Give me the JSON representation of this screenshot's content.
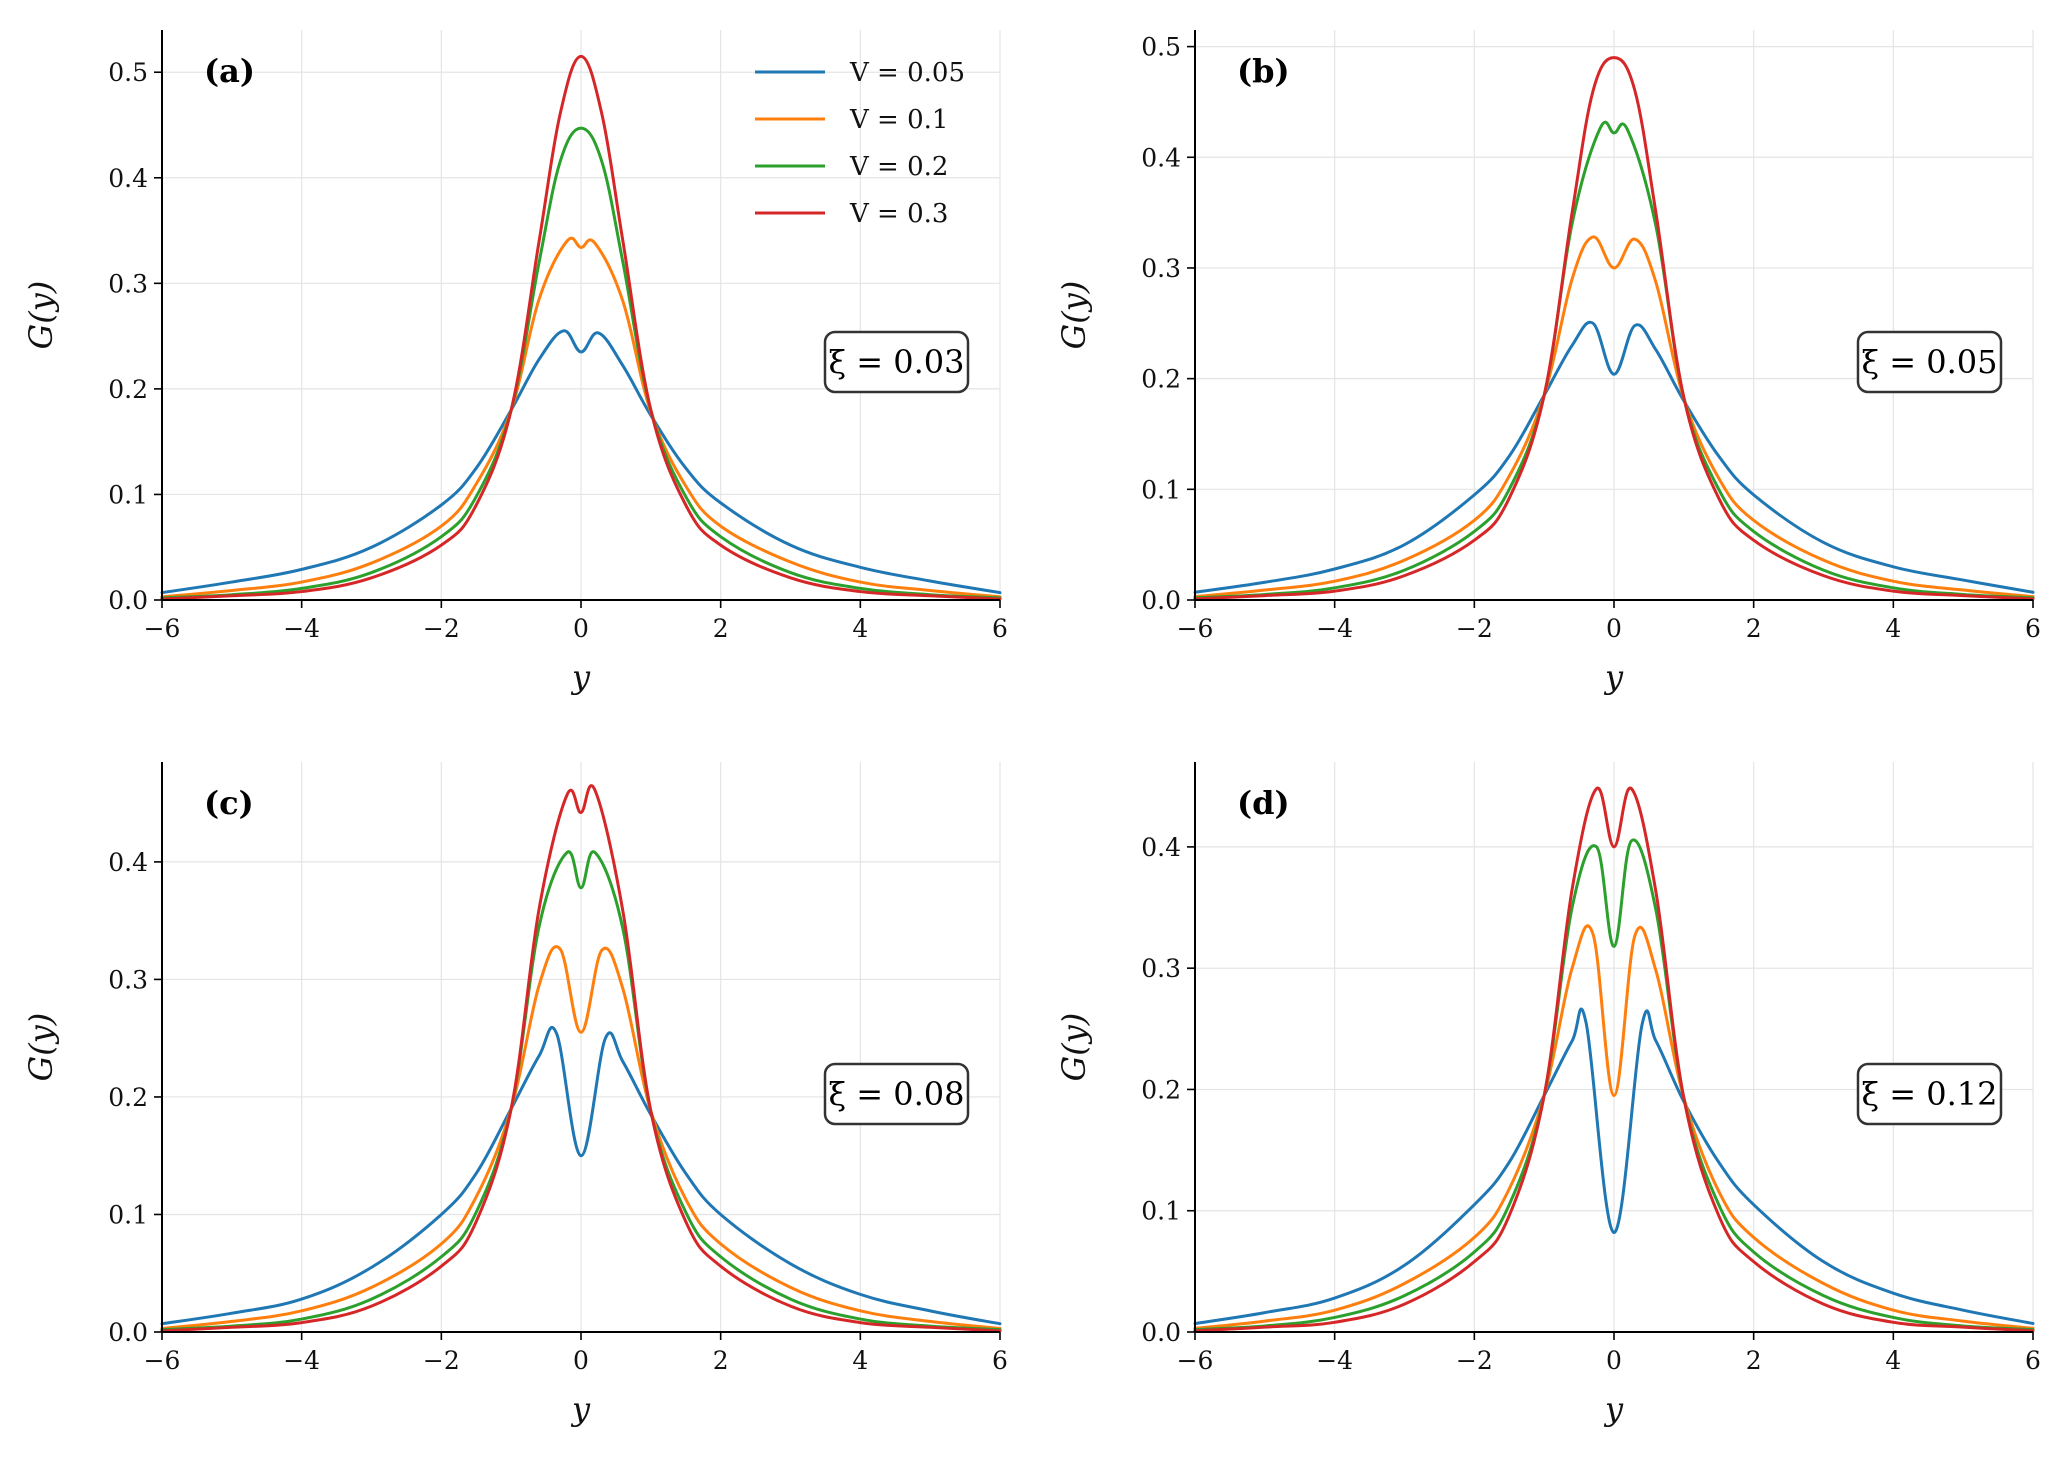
{
  "chart_data": [
    {
      "type": "line",
      "panel_label": "(a)",
      "annotation": "ξ = 0.03",
      "xlabel": "y",
      "ylabel": "G(y)",
      "xlim": [
        -6,
        6
      ],
      "ylim": [
        0,
        0.54
      ],
      "xticks": [
        -6,
        -4,
        -2,
        0,
        2,
        4,
        6
      ],
      "yticks": [
        0.0,
        0.1,
        0.2,
        0.3,
        0.4,
        0.5
      ],
      "grid": true,
      "legend": "top-right",
      "series": [
        {
          "name": "V = 0.05",
          "color": "#1f77b4",
          "x": [
            -6,
            -5,
            -4,
            -3,
            -2,
            -1.5,
            -1,
            -0.6,
            -0.25,
            0,
            0.25,
            0.6,
            1,
            1.5,
            2,
            3,
            4,
            5,
            6
          ],
          "y": [
            0.007,
            0.017,
            0.029,
            0.05,
            0.09,
            0.125,
            0.18,
            0.228,
            0.255,
            0.235,
            0.253,
            0.222,
            0.175,
            0.125,
            0.092,
            0.052,
            0.031,
            0.018,
            0.007
          ]
        },
        {
          "name": "V = 0.1",
          "color": "#ff7f0e",
          "x": [
            -6,
            -5,
            -4,
            -3,
            -2,
            -1.5,
            -1,
            -0.6,
            -0.2,
            0,
            0.2,
            0.6,
            1,
            1.5,
            2,
            3,
            4,
            5,
            6
          ],
          "y": [
            0.003,
            0.009,
            0.017,
            0.035,
            0.07,
            0.11,
            0.18,
            0.285,
            0.34,
            0.334,
            0.338,
            0.283,
            0.178,
            0.108,
            0.07,
            0.036,
            0.017,
            0.009,
            0.003
          ]
        },
        {
          "name": "V = 0.2",
          "color": "#2ca02c",
          "x": [
            -6,
            -5,
            -4,
            -3,
            -2,
            -1.5,
            -1,
            -0.6,
            -0.3,
            0,
            0.3,
            0.6,
            1,
            1.5,
            2,
            3,
            4,
            5,
            6
          ],
          "y": [
            0.002,
            0.005,
            0.011,
            0.026,
            0.06,
            0.098,
            0.18,
            0.32,
            0.415,
            0.447,
            0.415,
            0.32,
            0.18,
            0.098,
            0.06,
            0.026,
            0.011,
            0.005,
            0.002
          ]
        },
        {
          "name": "V = 0.3",
          "color": "#d62728",
          "x": [
            -6,
            -5,
            -4,
            -3,
            -2,
            -1.5,
            -1,
            -0.6,
            -0.3,
            0,
            0.3,
            0.6,
            1,
            1.5,
            2,
            3,
            4,
            5,
            6
          ],
          "y": [
            0.001,
            0.004,
            0.008,
            0.021,
            0.052,
            0.09,
            0.18,
            0.34,
            0.46,
            0.515,
            0.46,
            0.34,
            0.18,
            0.09,
            0.052,
            0.021,
            0.008,
            0.004,
            0.001
          ]
        }
      ]
    },
    {
      "type": "line",
      "panel_label": "(b)",
      "annotation": "ξ = 0.05",
      "xlabel": "y",
      "ylabel": "G(y)",
      "xlim": [
        -6,
        6
      ],
      "ylim": [
        0,
        0.515
      ],
      "xticks": [
        -6,
        -4,
        -2,
        0,
        2,
        4,
        6
      ],
      "yticks": [
        0.0,
        0.1,
        0.2,
        0.3,
        0.4,
        0.5
      ],
      "grid": true,
      "series": [
        {
          "name": "V = 0.05",
          "color": "#1f77b4",
          "x": [
            -6,
            -5,
            -4,
            -3,
            -2,
            -1.5,
            -1,
            -0.6,
            -0.3,
            0,
            0.3,
            0.6,
            1,
            1.5,
            2,
            3,
            4,
            5,
            6
          ],
          "y": [
            0.007,
            0.016,
            0.028,
            0.05,
            0.095,
            0.13,
            0.185,
            0.23,
            0.25,
            0.204,
            0.248,
            0.226,
            0.18,
            0.13,
            0.095,
            0.052,
            0.03,
            0.018,
            0.007
          ]
        },
        {
          "name": "V = 0.1",
          "color": "#ff7f0e",
          "x": [
            -6,
            -5,
            -4,
            -3,
            -2,
            -1.5,
            -1,
            -0.6,
            -0.3,
            0,
            0.3,
            0.6,
            1,
            1.5,
            2,
            3,
            4,
            5,
            6
          ],
          "y": [
            0.003,
            0.009,
            0.017,
            0.036,
            0.072,
            0.112,
            0.185,
            0.29,
            0.328,
            0.3,
            0.326,
            0.287,
            0.182,
            0.11,
            0.072,
            0.036,
            0.017,
            0.009,
            0.003
          ]
        },
        {
          "name": "V = 0.2",
          "color": "#2ca02c",
          "x": [
            -6,
            -5,
            -4,
            -3,
            -2,
            -1.5,
            -1,
            -0.6,
            -0.2,
            0,
            0.2,
            0.6,
            1,
            1.5,
            2,
            3,
            4,
            5,
            6
          ],
          "y": [
            0.002,
            0.005,
            0.011,
            0.027,
            0.062,
            0.1,
            0.185,
            0.34,
            0.426,
            0.422,
            0.424,
            0.338,
            0.183,
            0.1,
            0.062,
            0.027,
            0.011,
            0.005,
            0.002
          ]
        },
        {
          "name": "V = 0.3",
          "color": "#d62728",
          "x": [
            -6,
            -5,
            -4,
            -3,
            -2,
            -1.5,
            -1,
            -0.6,
            -0.3,
            0,
            0.3,
            0.6,
            1,
            1.5,
            2,
            3,
            4,
            5,
            6
          ],
          "y": [
            0.001,
            0.004,
            0.008,
            0.022,
            0.054,
            0.092,
            0.185,
            0.35,
            0.46,
            0.49,
            0.46,
            0.35,
            0.183,
            0.092,
            0.054,
            0.022,
            0.008,
            0.004,
            0.001
          ]
        }
      ]
    },
    {
      "type": "line",
      "panel_label": "(c)",
      "annotation": "ξ = 0.08",
      "xlabel": "y",
      "ylabel": "G(y)",
      "xlim": [
        -6,
        6
      ],
      "ylim": [
        0,
        0.485
      ],
      "xticks": [
        -6,
        -4,
        -2,
        0,
        2,
        4,
        6
      ],
      "yticks": [
        0.0,
        0.1,
        0.2,
        0.3,
        0.4
      ],
      "grid": true,
      "series": [
        {
          "name": "V = 0.05",
          "color": "#1f77b4",
          "x": [
            -6,
            -5,
            -4,
            -3,
            -2,
            -1.5,
            -1,
            -0.6,
            -0.35,
            0,
            0.35,
            0.6,
            1,
            1.5,
            2,
            3,
            4,
            5,
            6
          ],
          "y": [
            0.007,
            0.016,
            0.028,
            0.055,
            0.1,
            0.135,
            0.19,
            0.235,
            0.254,
            0.15,
            0.25,
            0.23,
            0.185,
            0.135,
            0.1,
            0.058,
            0.032,
            0.018,
            0.007
          ]
        },
        {
          "name": "V = 0.1",
          "color": "#ff7f0e",
          "x": [
            -6,
            -5,
            -4,
            -3,
            -2,
            -1.5,
            -1,
            -0.6,
            -0.3,
            0,
            0.3,
            0.6,
            1,
            1.5,
            2,
            3,
            4,
            5,
            6
          ],
          "y": [
            0.003,
            0.009,
            0.018,
            0.038,
            0.075,
            0.115,
            0.19,
            0.295,
            0.326,
            0.255,
            0.325,
            0.292,
            0.188,
            0.113,
            0.075,
            0.038,
            0.018,
            0.009,
            0.003
          ]
        },
        {
          "name": "V = 0.2",
          "color": "#2ca02c",
          "x": [
            -6,
            -5,
            -4,
            -3,
            -2,
            -1.5,
            -1,
            -0.6,
            -0.2,
            0,
            0.2,
            0.6,
            1,
            1.5,
            2,
            3,
            4,
            5,
            6
          ],
          "y": [
            0.002,
            0.005,
            0.011,
            0.028,
            0.064,
            0.102,
            0.19,
            0.345,
            0.408,
            0.378,
            0.408,
            0.343,
            0.188,
            0.102,
            0.064,
            0.028,
            0.011,
            0.005,
            0.002
          ]
        },
        {
          "name": "V = 0.3",
          "color": "#d62728",
          "x": [
            -6,
            -5,
            -4,
            -3,
            -2,
            -1.5,
            -1,
            -0.6,
            -0.2,
            0,
            0.2,
            0.6,
            1,
            1.5,
            2,
            3,
            4,
            5,
            6
          ],
          "y": [
            0.001,
            0.004,
            0.008,
            0.022,
            0.056,
            0.094,
            0.19,
            0.36,
            0.457,
            0.442,
            0.461,
            0.358,
            0.188,
            0.094,
            0.056,
            0.022,
            0.008,
            0.004,
            0.001
          ]
        }
      ]
    },
    {
      "type": "line",
      "panel_label": "(d)",
      "annotation": "ξ = 0.12",
      "xlabel": "y",
      "ylabel": "G(y)",
      "xlim": [
        -6,
        6
      ],
      "ylim": [
        0,
        0.47
      ],
      "xticks": [
        -6,
        -4,
        -2,
        0,
        2,
        4,
        6
      ],
      "yticks": [
        0.0,
        0.1,
        0.2,
        0.3,
        0.4
      ],
      "grid": true,
      "series": [
        {
          "name": "V = 0.05",
          "color": "#1f77b4",
          "x": [
            -6,
            -5,
            -4,
            -3,
            -2,
            -1.5,
            -1,
            -0.6,
            -0.4,
            0,
            0.4,
            0.6,
            1,
            1.5,
            2,
            3,
            4,
            5,
            6
          ],
          "y": [
            0.007,
            0.016,
            0.028,
            0.055,
            0.105,
            0.14,
            0.195,
            0.24,
            0.255,
            0.082,
            0.253,
            0.24,
            0.19,
            0.14,
            0.105,
            0.058,
            0.032,
            0.018,
            0.007
          ]
        },
        {
          "name": "V = 0.1",
          "color": "#ff7f0e",
          "x": [
            -6,
            -5,
            -4,
            -3,
            -2,
            -1.5,
            -1,
            -0.6,
            -0.3,
            0,
            0.3,
            0.6,
            1,
            1.5,
            2,
            3,
            4,
            5,
            6
          ],
          "y": [
            0.003,
            0.009,
            0.018,
            0.04,
            0.078,
            0.118,
            0.195,
            0.3,
            0.328,
            0.195,
            0.327,
            0.298,
            0.193,
            0.116,
            0.078,
            0.04,
            0.018,
            0.009,
            0.003
          ]
        },
        {
          "name": "V = 0.2",
          "color": "#2ca02c",
          "x": [
            -6,
            -5,
            -4,
            -3,
            -2,
            -1.5,
            -1,
            -0.6,
            -0.25,
            0,
            0.25,
            0.6,
            1,
            1.5,
            2,
            3,
            4,
            5,
            6
          ],
          "y": [
            0.002,
            0.005,
            0.012,
            0.03,
            0.066,
            0.105,
            0.195,
            0.35,
            0.4,
            0.318,
            0.405,
            0.348,
            0.193,
            0.105,
            0.066,
            0.03,
            0.012,
            0.005,
            0.002
          ]
        },
        {
          "name": "V = 0.3",
          "color": "#d62728",
          "x": [
            -6,
            -5,
            -4,
            -3,
            -2,
            -1.5,
            -1,
            -0.6,
            -0.25,
            0,
            0.25,
            0.6,
            1,
            1.5,
            2,
            3,
            4,
            5,
            6
          ],
          "y": [
            0.001,
            0.004,
            0.008,
            0.023,
            0.058,
            0.096,
            0.195,
            0.365,
            0.448,
            0.4,
            0.448,
            0.363,
            0.193,
            0.096,
            0.058,
            0.023,
            0.008,
            0.004,
            0.001
          ]
        }
      ]
    }
  ]
}
